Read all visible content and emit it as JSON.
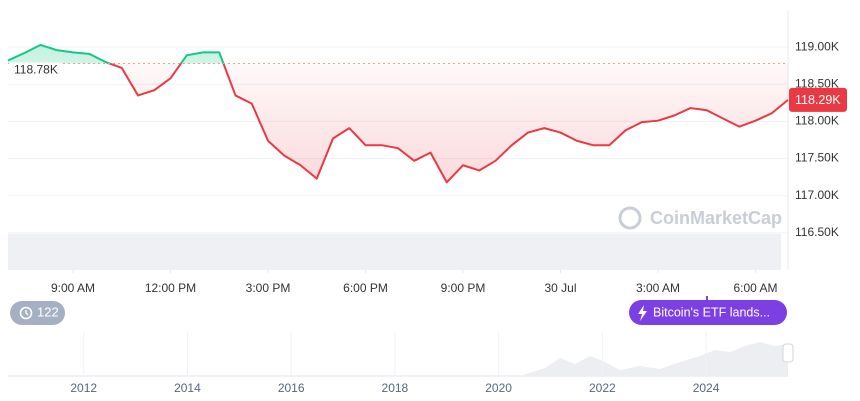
{
  "chart_data": {
    "type": "line",
    "x": [
      7,
      7.5,
      8,
      8.5,
      9,
      9.5,
      10,
      10.5,
      11,
      11.5,
      12,
      12.5,
      13,
      13.5,
      14,
      14.5,
      15,
      15.5,
      16,
      16.5,
      17,
      17.5,
      18,
      18.5,
      19,
      19.5,
      20,
      20.5,
      21,
      21.5,
      22,
      22.5,
      23,
      23.5,
      24,
      24.5,
      25,
      25.5,
      26,
      26.5,
      27,
      27.5,
      28,
      28.5,
      29,
      29.5,
      30,
      30.5,
      31
    ],
    "values": [
      118820,
      118920,
      119030,
      118960,
      118930,
      118910,
      118800,
      118720,
      118350,
      118420,
      118580,
      118890,
      118930,
      118930,
      118350,
      118240,
      117740,
      117540,
      117410,
      117230,
      117770,
      117910,
      117680,
      117680,
      117640,
      117470,
      117580,
      117180,
      117410,
      117340,
      117470,
      117680,
      117850,
      117910,
      117850,
      117740,
      117680,
      117680,
      117880,
      117990,
      118010,
      118080,
      118180,
      118150,
      118040,
      117930,
      118010,
      118110,
      118290
    ],
    "xlim": [
      7,
      31
    ],
    "xticks": [
      {
        "value": 9,
        "label": "9:00 AM"
      },
      {
        "value": 12,
        "label": "12:00 PM"
      },
      {
        "value": 15,
        "label": "3:00 PM"
      },
      {
        "value": 18,
        "label": "6:00 PM"
      },
      {
        "value": 21,
        "label": "9:00 PM"
      },
      {
        "value": 24,
        "label": "30 Jul"
      },
      {
        "value": 27,
        "label": "3:00 AM"
      },
      {
        "value": 30,
        "label": "6:00 AM"
      }
    ],
    "ylim": [
      116000,
      119500
    ],
    "yticks": [
      {
        "value": 116500,
        "label": "116.50K"
      },
      {
        "value": 117000,
        "label": "117.00K"
      },
      {
        "value": 117500,
        "label": "117.50K"
      },
      {
        "value": 118000,
        "label": "118.00K"
      },
      {
        "value": 118500,
        "label": "118.50K"
      },
      {
        "value": 119000,
        "label": "119.00K"
      }
    ],
    "reference": {
      "value": 118780,
      "label": "118.78K"
    },
    "current": {
      "value": 118290,
      "label": "118.29K"
    },
    "colors": {
      "up": "#16c784",
      "down": "#ea3943"
    },
    "grid": true,
    "watermark": "CoinMarketCap"
  },
  "navigator": {
    "xlim": [
      2010.54,
      2025.58
    ],
    "xticks": [
      2012,
      2014,
      2016,
      2018,
      2020,
      2022,
      2024
    ]
  },
  "history_badge": "122",
  "news_pill": "Bitcoin's ETF lands..."
}
